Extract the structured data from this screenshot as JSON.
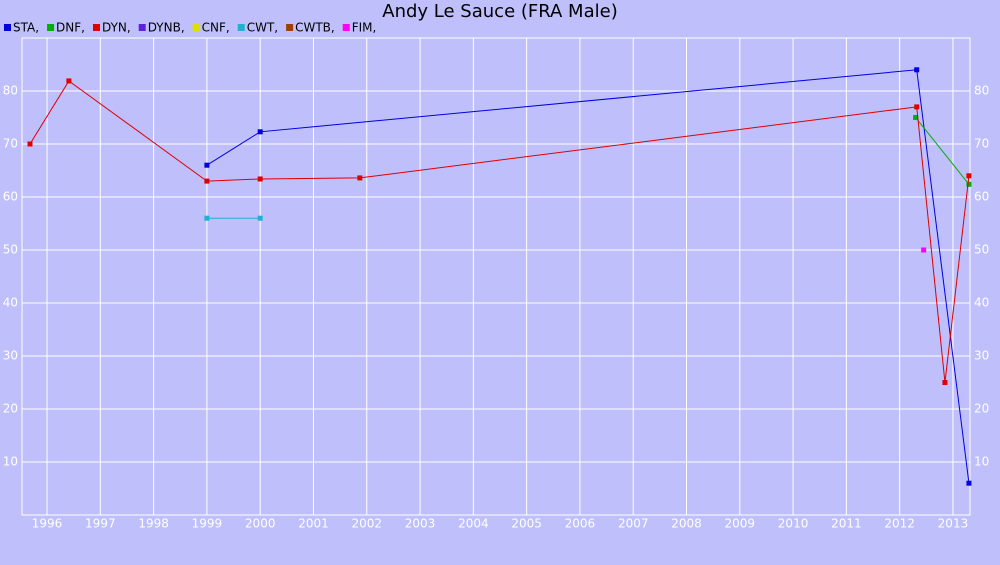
{
  "chart_data": {
    "type": "line",
    "title": "Andy Le Sauce (FRA Male)",
    "xlim": [
      1995.53,
      2013.32
    ],
    "ylim": [
      0,
      90
    ],
    "xticks": [
      1996,
      1997,
      1998,
      1999,
      2000,
      2001,
      2002,
      2003,
      2004,
      2005,
      2006,
      2007,
      2008,
      2009,
      2010,
      2011,
      2012,
      2013
    ],
    "yticks": [
      10,
      20,
      30,
      40,
      50,
      60,
      70,
      80
    ],
    "grid": true,
    "series": [
      {
        "name": "STA,",
        "color": "#0000e0",
        "x": [
          1999.0,
          2000.0,
          2012.32,
          2013.3
        ],
        "values": [
          66.0,
          72.3,
          84.0,
          6.0
        ]
      },
      {
        "name": "DNF,",
        "color": "#00b000",
        "x": [
          2012.3,
          2013.3
        ],
        "values": [
          75.0,
          62.4
        ]
      },
      {
        "name": "DYN,",
        "color": "#e00000",
        "x": [
          1995.68,
          1996.41,
          1999.0,
          2000.0,
          2001.87,
          2012.32,
          2012.85,
          2013.3
        ],
        "values": [
          70.0,
          81.9,
          63.0,
          63.4,
          63.6,
          77.0,
          25.0,
          64.0
        ]
      },
      {
        "name": "DYNB,",
        "color": "#6020e0",
        "x": [],
        "values": []
      },
      {
        "name": "CNF,",
        "color": "#e0e000",
        "x": [],
        "values": []
      },
      {
        "name": "CWT,",
        "color": "#20b0d0",
        "x": [
          1999.0,
          2000.0
        ],
        "values": [
          56.0,
          56.0
        ]
      },
      {
        "name": "CWTB,",
        "color": "#a04000",
        "x": [],
        "values": []
      },
      {
        "name": "FIM,",
        "color": "#ff00ff",
        "x": [
          2012.45
        ],
        "values": [
          50.0
        ]
      }
    ]
  }
}
